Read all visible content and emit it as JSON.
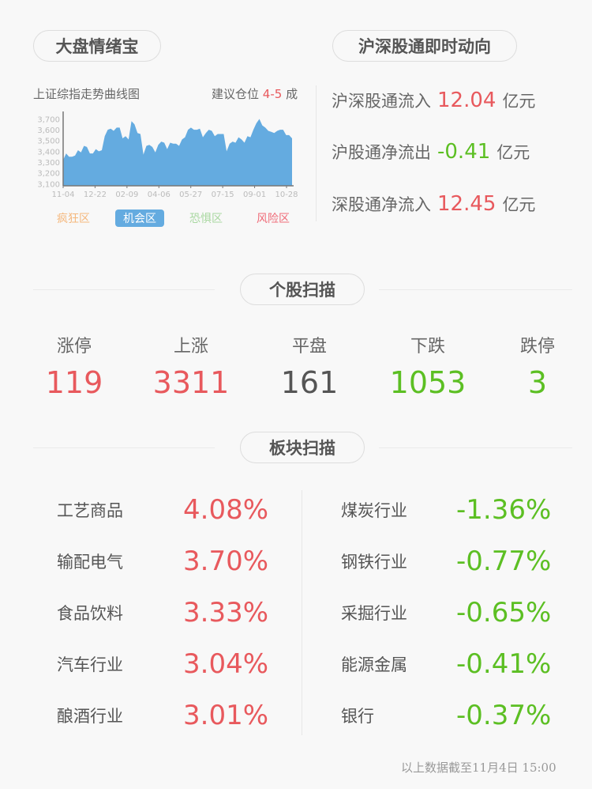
{
  "left_panel": {
    "title": "大盘情绪宝",
    "chart_title": "上证综指走势曲线图",
    "suggestion_prefix": "建议仓位",
    "suggestion_value": "4-5",
    "suggestion_suffix": "成",
    "zones": [
      "疯狂区",
      "机会区",
      "恐惧区",
      "风险区"
    ],
    "active_zone": "机会区",
    "zone_colors": [
      "#f5b77c",
      "#64abe0",
      "#a9d8a1",
      "#ef6b78"
    ]
  },
  "chart_data": {
    "type": "area",
    "title": "上证综指走势曲线图",
    "x_tick_labels": [
      "11-04",
      "12-22",
      "02-09",
      "04-06",
      "05-27",
      "07-15",
      "09-01",
      "10-28"
    ],
    "y_tick_labels": [
      "3,100",
      "3,200",
      "3,300",
      "3,400",
      "3,500",
      "3,600",
      "3,700"
    ],
    "ylim": [
      3080,
      3740
    ],
    "color": "#64abe0",
    "values": [
      3320,
      3380,
      3350,
      3350,
      3360,
      3410,
      3390,
      3450,
      3440,
      3380,
      3380,
      3420,
      3400,
      3410,
      3540,
      3600,
      3610,
      3590,
      3620,
      3620,
      3520,
      3540,
      3510,
      3680,
      3650,
      3570,
      3560,
      3370,
      3450,
      3460,
      3440,
      3390,
      3460,
      3490,
      3480,
      3420,
      3480,
      3470,
      3470,
      3450,
      3510,
      3530,
      3600,
      3620,
      3600,
      3600,
      3610,
      3530,
      3570,
      3600,
      3590,
      3540,
      3560,
      3560,
      3560,
      3400,
      3470,
      3490,
      3480,
      3530,
      3510,
      3480,
      3540,
      3530,
      3600,
      3660,
      3700,
      3640,
      3620,
      3590,
      3580,
      3570,
      3590,
      3600,
      3600,
      3550,
      3550,
      3520
    ]
  },
  "right_panel": {
    "title": "沪深股通即时动向",
    "flows": [
      {
        "label": "沪深股通流入",
        "value": "12.04",
        "unit": "亿元",
        "dir": "up"
      },
      {
        "label": "沪股通净流出",
        "value": "-0.41",
        "unit": "亿元",
        "dir": "down"
      },
      {
        "label": "深股通净流入",
        "value": "12.45",
        "unit": "亿元",
        "dir": "up"
      }
    ]
  },
  "stocks": {
    "title": "个股扫描",
    "items": [
      {
        "label": "涨停",
        "value": "119"
      },
      {
        "label": "上涨",
        "value": "3311"
      },
      {
        "label": "平盘",
        "value": "161"
      },
      {
        "label": "下跌",
        "value": "1053"
      },
      {
        "label": "跌停",
        "value": "3"
      }
    ]
  },
  "sectors": {
    "title": "板块扫描",
    "gainers": [
      {
        "name": "工艺商品",
        "pct": "4.08%"
      },
      {
        "name": "输配电气",
        "pct": "3.70%"
      },
      {
        "name": "食品饮料",
        "pct": "3.33%"
      },
      {
        "name": "汽车行业",
        "pct": "3.04%"
      },
      {
        "name": "酿酒行业",
        "pct": "3.01%"
      }
    ],
    "losers": [
      {
        "name": "煤炭行业",
        "pct": "-1.36%"
      },
      {
        "name": "钢铁行业",
        "pct": "-0.77%"
      },
      {
        "name": "采掘行业",
        "pct": "-0.65%"
      },
      {
        "name": "能源金属",
        "pct": "-0.41%"
      },
      {
        "name": "银行",
        "pct": "-0.37%"
      }
    ]
  },
  "footer": "以上数据截至11月4日 15:00",
  "colors": {
    "up": "#e8595d",
    "down": "#5cbf23",
    "flat": "#555555"
  }
}
